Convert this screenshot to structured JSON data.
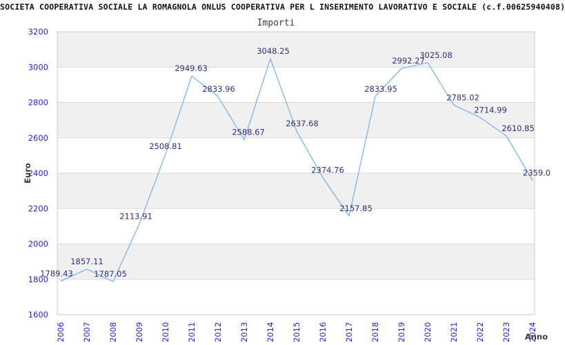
{
  "chart_data": {
    "type": "line",
    "title": "SOCIETA COOPERATIVA SOCIALE LA ROMAGNOLA ONLUS COOPERATIVA PER L INSERIMENTO LAVORATIVO E SOCIALE (c.f.00625940408)",
    "subtitle": "Importi",
    "xlabel": "Anno",
    "ylabel": "Euro",
    "categories": [
      "2006",
      "2007",
      "2008",
      "2009",
      "2010",
      "2011",
      "2012",
      "2013",
      "2014",
      "2015",
      "2016",
      "2017",
      "2018",
      "2019",
      "2020",
      "2021",
      "2022",
      "2023",
      "2024"
    ],
    "values": [
      1789.43,
      1857.11,
      1787.05,
      2113.91,
      2508.81,
      2949.63,
      2833.96,
      2588.67,
      3048.25,
      2637.68,
      2374.76,
      2157.85,
      2833.95,
      2992.27,
      3025.08,
      2785.02,
      2714.99,
      2610.85,
      2359.0
    ],
    "point_labels": [
      "1789.43",
      "1857.11",
      "1787.05",
      "2113.91",
      "2508.81",
      "2949.63",
      "2833.96",
      "2588.67",
      "3048.25",
      "2637.68",
      "2374.76",
      "2157.85",
      "2833.95",
      "2992.27",
      "3025.08",
      "2785.02",
      "2714.99",
      "2610.85",
      "2359.0"
    ],
    "ylim": [
      1600,
      3200
    ],
    "yticks": [
      3200,
      3000,
      2800,
      2600,
      2400,
      2200,
      2000,
      1800,
      1600
    ],
    "grid": true,
    "legend_position": "none",
    "banded_rows": true,
    "label_dx": [
      -6,
      0,
      -4,
      -5,
      0,
      -1,
      1,
      6,
      4,
      8,
      7,
      10,
      8,
      10,
      12,
      13,
      15,
      17,
      6
    ],
    "colors": {
      "line": "#7cb0e8",
      "point_label": "#2f2f78",
      "tick_label": "#2323dc",
      "axis_title": "#3a3a3a",
      "band": "#f0f0f0",
      "gridline": "#d9d9d9",
      "plot_border": "#cccccc",
      "background": "#ffffff",
      "title": "#111111",
      "subtitle": "#3a3a3a"
    }
  }
}
